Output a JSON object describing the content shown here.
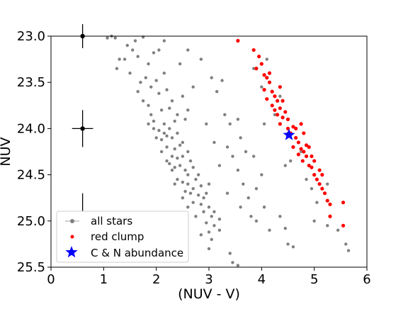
{
  "chart_data": {
    "type": "scatter",
    "xlabel": "(NUV - V)",
    "ylabel": "NUV",
    "xlim": [
      0,
      6
    ],
    "ylim": [
      25.5,
      23.0
    ],
    "y_inverted": true,
    "grid": false,
    "legend_position": "lower-left",
    "x_ticks": [
      0,
      1,
      2,
      3,
      4,
      5,
      6
    ],
    "x_tick_labels": [
      "0",
      "1",
      "2",
      "3",
      "4",
      "5",
      "6"
    ],
    "y_ticks": [
      23.0,
      23.5,
      24.0,
      24.5,
      25.0,
      25.5
    ],
    "y_tick_labels": [
      "23.0",
      "23.5",
      "24.0",
      "24.5",
      "25.0",
      "25.5"
    ],
    "error_bars": [
      {
        "x": 0.6,
        "y": 23.0,
        "xerr": 0.0,
        "yerr": 0.13
      },
      {
        "x": 0.6,
        "y": 24.0,
        "xerr": 0.2,
        "yerr": 0.2
      },
      {
        "x": 0.6,
        "y": 25.0,
        "xerr": 0.0,
        "yerr": 0.3
      }
    ],
    "series": [
      {
        "name": "all stars",
        "color": "#808080",
        "marker": "circle",
        "points": [
          [
            1.07,
            23.02
          ],
          [
            1.15,
            23.0
          ],
          [
            1.22,
            23.02
          ],
          [
            1.75,
            23.01
          ],
          [
            2.15,
            23.05
          ],
          [
            1.45,
            23.1
          ],
          [
            1.55,
            23.15
          ],
          [
            1.4,
            23.25
          ],
          [
            1.65,
            23.22
          ],
          [
            1.85,
            23.3
          ],
          [
            1.95,
            23.18
          ],
          [
            1.8,
            23.45
          ],
          [
            1.5,
            23.4
          ],
          [
            1.65,
            23.6
          ],
          [
            1.7,
            23.5
          ],
          [
            1.9,
            23.55
          ],
          [
            2.0,
            23.48
          ],
          [
            1.75,
            23.7
          ],
          [
            1.85,
            23.75
          ],
          [
            2.05,
            23.62
          ],
          [
            2.2,
            23.58
          ],
          [
            2.3,
            23.7
          ],
          [
            1.9,
            23.85
          ],
          [
            2.1,
            23.8
          ],
          [
            1.95,
            23.92
          ],
          [
            2.25,
            23.78
          ],
          [
            2.4,
            23.85
          ],
          [
            2.15,
            23.95
          ],
          [
            2.35,
            23.92
          ],
          [
            2.55,
            23.9
          ],
          [
            2.05,
            24.02
          ],
          [
            2.15,
            24.05
          ],
          [
            2.25,
            24.0
          ],
          [
            2.2,
            24.08
          ],
          [
            2.1,
            24.12
          ],
          [
            2.3,
            24.1
          ],
          [
            2.4,
            24.05
          ],
          [
            2.5,
            24.15
          ],
          [
            2.2,
            24.2
          ],
          [
            2.35,
            24.22
          ],
          [
            2.45,
            24.18
          ],
          [
            2.6,
            24.25
          ],
          [
            2.3,
            24.3
          ],
          [
            2.4,
            24.32
          ],
          [
            2.5,
            24.3
          ],
          [
            2.65,
            24.35
          ],
          [
            2.25,
            24.38
          ],
          [
            2.35,
            24.42
          ],
          [
            2.45,
            24.4
          ],
          [
            2.55,
            24.45
          ],
          [
            2.7,
            24.42
          ],
          [
            2.8,
            24.5
          ],
          [
            2.4,
            24.55
          ],
          [
            2.5,
            24.58
          ],
          [
            2.6,
            24.6
          ],
          [
            2.75,
            24.55
          ],
          [
            2.85,
            24.62
          ],
          [
            2.55,
            24.68
          ],
          [
            2.65,
            24.7
          ],
          [
            2.8,
            24.72
          ],
          [
            2.95,
            24.7
          ],
          [
            2.7,
            24.8
          ],
          [
            2.85,
            24.82
          ],
          [
            3.0,
            24.85
          ],
          [
            2.9,
            24.9
          ],
          [
            3.05,
            24.95
          ],
          [
            2.75,
            24.95
          ],
          [
            2.95,
            25.02
          ],
          [
            3.1,
            25.05
          ],
          [
            3.0,
            25.12
          ],
          [
            2.85,
            25.15
          ],
          [
            3.05,
            25.2
          ],
          [
            3.2,
            25.1
          ],
          [
            3.0,
            25.3
          ],
          [
            3.4,
            25.35
          ],
          [
            3.45,
            25.45
          ],
          [
            3.55,
            25.48
          ],
          [
            1.3,
            23.25
          ],
          [
            1.25,
            23.35
          ],
          [
            1.6,
            23.05
          ],
          [
            2.05,
            23.15
          ],
          [
            2.6,
            23.15
          ],
          [
            2.85,
            23.25
          ],
          [
            2.15,
            23.4
          ],
          [
            2.45,
            23.3
          ],
          [
            2.7,
            23.55
          ],
          [
            3.05,
            23.45
          ],
          [
            3.25,
            23.48
          ],
          [
            3.15,
            23.6
          ],
          [
            2.5,
            23.65
          ],
          [
            2.6,
            23.8
          ],
          [
            2.95,
            23.95
          ],
          [
            3.3,
            23.85
          ],
          [
            3.4,
            23.95
          ],
          [
            3.55,
            23.9
          ],
          [
            3.1,
            24.15
          ],
          [
            3.35,
            24.2
          ],
          [
            3.6,
            24.1
          ],
          [
            3.7,
            24.25
          ],
          [
            3.45,
            24.3
          ],
          [
            3.2,
            24.4
          ],
          [
            3.85,
            24.3
          ],
          [
            3.55,
            24.45
          ],
          [
            3.65,
            24.6
          ],
          [
            3.9,
            24.65
          ],
          [
            3.35,
            24.7
          ],
          [
            3.75,
            24.75
          ],
          [
            3.6,
            24.85
          ],
          [
            4.05,
            24.85
          ],
          [
            3.8,
            24.95
          ],
          [
            4.35,
            24.95
          ],
          [
            4.45,
            25.08
          ],
          [
            3.9,
            25.0
          ],
          [
            4.15,
            25.1
          ],
          [
            4.5,
            25.25
          ],
          [
            4.6,
            25.28
          ],
          [
            5.0,
            25.0
          ],
          [
            5.25,
            25.05
          ],
          [
            5.45,
            25.1
          ],
          [
            5.6,
            25.25
          ],
          [
            5.65,
            25.32
          ],
          [
            4.0,
            23.55
          ],
          [
            4.25,
            23.85
          ],
          [
            4.1,
            23.25
          ],
          [
            4.35,
            23.65
          ],
          [
            3.85,
            23.35
          ],
          [
            4.05,
            23.95
          ],
          [
            4.5,
            24.05
          ],
          [
            4.75,
            24.25
          ],
          [
            4.55,
            24.35
          ],
          [
            4.0,
            24.5
          ],
          [
            4.45,
            24.4
          ],
          [
            4.85,
            24.55
          ],
          [
            5.25,
            24.6
          ],
          [
            5.05,
            24.8
          ],
          [
            4.95,
            24.65
          ],
          [
            1.85,
            23.95
          ],
          [
            1.95,
            24.0
          ],
          [
            2.0,
            24.1
          ],
          [
            2.1,
            24.25
          ],
          [
            2.2,
            24.35
          ],
          [
            2.3,
            24.45
          ],
          [
            2.6,
            24.5
          ],
          [
            2.7,
            24.65
          ],
          [
            2.9,
            24.75
          ],
          [
            3.0,
            24.6
          ],
          [
            3.1,
            24.9
          ],
          [
            3.2,
            24.98
          ],
          [
            2.6,
            24.85
          ],
          [
            2.5,
            24.75
          ],
          [
            2.35,
            24.6
          ]
        ]
      },
      {
        "name": "red clump",
        "color": "#ff0000",
        "marker": "circle",
        "points": [
          [
            3.55,
            23.05
          ],
          [
            3.85,
            23.15
          ],
          [
            3.95,
            23.22
          ],
          [
            3.9,
            23.35
          ],
          [
            4.0,
            23.3
          ],
          [
            4.05,
            23.42
          ],
          [
            4.1,
            23.45
          ],
          [
            4.15,
            23.5
          ],
          [
            4.05,
            23.58
          ],
          [
            4.2,
            23.6
          ],
          [
            4.25,
            23.65
          ],
          [
            4.3,
            23.7
          ],
          [
            4.2,
            23.75
          ],
          [
            4.35,
            23.78
          ],
          [
            4.3,
            23.85
          ],
          [
            4.4,
            23.88
          ],
          [
            4.45,
            23.82
          ],
          [
            4.35,
            23.95
          ],
          [
            4.5,
            24.0
          ],
          [
            4.55,
            24.05
          ],
          [
            4.6,
            23.98
          ],
          [
            4.65,
            24.1
          ],
          [
            4.7,
            24.15
          ],
          [
            4.6,
            24.2
          ],
          [
            4.75,
            24.22
          ],
          [
            4.8,
            24.25
          ],
          [
            4.85,
            24.3
          ],
          [
            4.78,
            24.35
          ],
          [
            4.9,
            24.4
          ],
          [
            4.95,
            24.42
          ],
          [
            5.0,
            24.5
          ],
          [
            5.05,
            24.55
          ],
          [
            5.1,
            24.6
          ],
          [
            5.15,
            24.65
          ],
          [
            5.2,
            24.7
          ],
          [
            5.25,
            24.78
          ],
          [
            5.3,
            24.82
          ],
          [
            5.55,
            24.8
          ],
          [
            5.55,
            25.05
          ],
          [
            5.3,
            24.95
          ],
          [
            4.85,
            24.18
          ],
          [
            4.95,
            24.3
          ],
          [
            4.7,
            24.28
          ],
          [
            4.65,
            24.0
          ],
          [
            4.75,
            23.95
          ],
          [
            4.4,
            23.7
          ],
          [
            4.15,
            23.4
          ],
          [
            4.35,
            23.55
          ],
          [
            4.5,
            23.9
          ],
          [
            4.8,
            24.05
          ],
          [
            4.9,
            24.2
          ],
          [
            5.0,
            24.35
          ],
          [
            5.1,
            24.45
          ],
          [
            5.15,
            24.5
          ],
          [
            4.1,
            23.68
          ],
          [
            4.25,
            23.8
          ]
        ]
      },
      {
        "name": "C & N abundance",
        "color": "#0000ff",
        "marker": "star",
        "points": [
          [
            4.52,
            24.07
          ]
        ]
      }
    ]
  },
  "legend": {
    "all_stars": "all stars",
    "red_clump": "red clump",
    "cn_abundance": "C & N abundance"
  }
}
